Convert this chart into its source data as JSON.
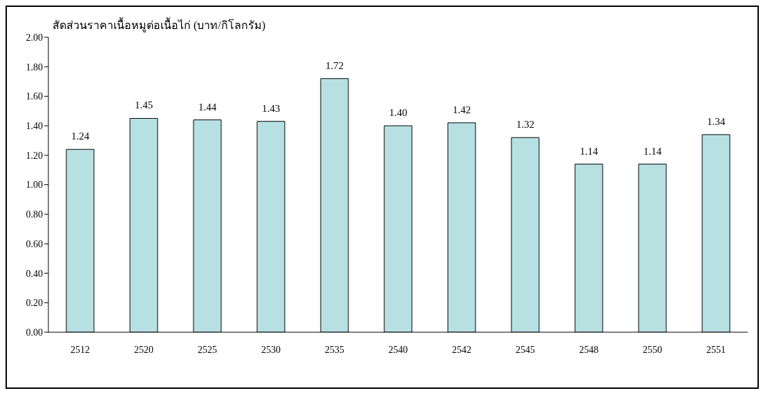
{
  "chart_data": {
    "type": "bar",
    "title": "สัดส่วนราคาเนื้อหมูต่อเนื้อไก่ (บาท/กิโลกรัม)",
    "categories": [
      "2512",
      "2520",
      "2525",
      "2530",
      "2535",
      "2540",
      "2542",
      "2545",
      "2548",
      "2550",
      "2551"
    ],
    "values": [
      1.24,
      1.45,
      1.44,
      1.43,
      1.72,
      1.4,
      1.42,
      1.32,
      1.14,
      1.14,
      1.34
    ],
    "value_labels": [
      "1.24",
      "1.45",
      "1.44",
      "1.43",
      "1.72",
      "1.40",
      "1.42",
      "1.32",
      "1.14",
      "1.14",
      "1.34"
    ],
    "color": "#b7e0e3",
    "ylim": [
      0,
      2
    ],
    "yticks": [
      {
        "value": 0,
        "label": "0.00"
      },
      {
        "value": 0.2,
        "label": "0.20"
      },
      {
        "value": 0.4,
        "label": "0.40"
      },
      {
        "value": 0.6,
        "label": "0.60"
      },
      {
        "value": 0.8,
        "label": "0.80"
      },
      {
        "value": 1,
        "label": "1.00"
      },
      {
        "value": 1.2,
        "label": "1.20"
      },
      {
        "value": 1.4,
        "label": "1.40"
      },
      {
        "value": 1.6,
        "label": "1.60"
      },
      {
        "value": 1.8,
        "label": "1.80"
      },
      {
        "value": 2,
        "label": "2.00"
      }
    ],
    "grid": false,
    "legend": false
  }
}
